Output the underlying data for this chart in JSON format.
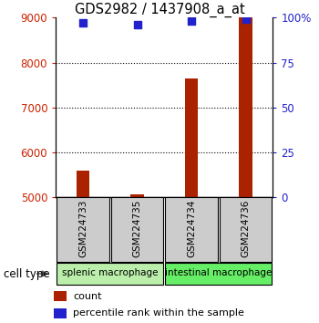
{
  "title": "GDS2982 / 1437908_a_at",
  "samples": [
    "GSM224733",
    "GSM224735",
    "GSM224734",
    "GSM224736"
  ],
  "counts": [
    5580,
    5060,
    7650,
    9000
  ],
  "percentile_ranks": [
    97,
    96,
    98,
    99
  ],
  "ylim_left": [
    5000,
    9000
  ],
  "ylim_right": [
    0,
    100
  ],
  "yticks_left": [
    5000,
    6000,
    7000,
    8000,
    9000
  ],
  "yticks_right": [
    0,
    25,
    50,
    75,
    100
  ],
  "ytick_labels_right": [
    "0",
    "25",
    "50",
    "75",
    "100%"
  ],
  "bar_color": "#aa2200",
  "dot_color": "#2222cc",
  "groups": [
    {
      "label": "splenic macrophage",
      "samples": [
        0,
        1
      ],
      "color": "#bbeeaa"
    },
    {
      "label": "intestinal macrophage",
      "samples": [
        2,
        3
      ],
      "color": "#66ee66"
    }
  ],
  "cell_type_label": "cell type",
  "legend_count_label": "count",
  "legend_pct_label": "percentile rank within the sample",
  "left_tick_color": "#cc2200",
  "right_tick_color": "#2222cc",
  "bar_width": 0.25,
  "dot_size": 40,
  "xlabel_box_color": "#cccccc",
  "sample_box_border": "#000000",
  "group_box_border": "#000000"
}
